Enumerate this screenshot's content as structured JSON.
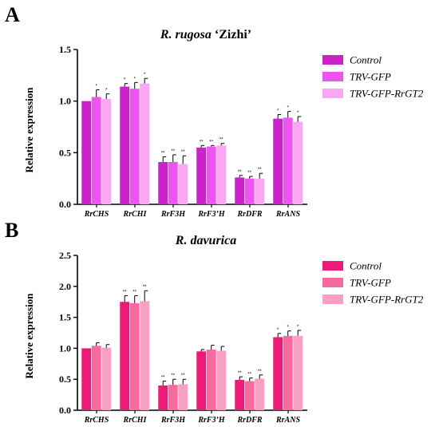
{
  "chart_data": [
    {
      "panel": "A",
      "type": "bar",
      "title_italic": "R. rugosa",
      "title_rest": " ‘Zizhi’",
      "xlabel": "",
      "ylabel": "Relative expression",
      "ylim": [
        0,
        1.5
      ],
      "yticks": [
        "0.0",
        "0.5",
        "1.0",
        "1.5"
      ],
      "categories": [
        "RrCHS",
        "RrCHI",
        "RrF3H",
        "RrF3’H",
        "RrDFR",
        "RrANS"
      ],
      "series": [
        {
          "name": "Control",
          "color": "#cc22cc",
          "values": [
            1.0,
            1.14,
            0.41,
            0.55,
            0.26,
            0.83
          ],
          "errors": [
            0.0,
            0.03,
            0.05,
            0.02,
            0.02,
            0.04
          ]
        },
        {
          "name": "TRV-GFP",
          "color": "#ee55ee",
          "values": [
            1.04,
            1.12,
            0.41,
            0.56,
            0.25,
            0.84
          ],
          "errors": [
            0.07,
            0.06,
            0.07,
            0.01,
            0.02,
            0.06
          ]
        },
        {
          "name": "TRV-GFP-RrGT2",
          "color": "#f8a8f0",
          "values": [
            1.02,
            1.17,
            0.39,
            0.57,
            0.25,
            0.8
          ],
          "errors": [
            0.05,
            0.05,
            0.08,
            0.02,
            0.05,
            0.05
          ]
        }
      ],
      "significance": [
        [
          "",
          "*",
          "*"
        ],
        [
          "*",
          "*",
          "*"
        ],
        [
          "**",
          "**",
          "**"
        ],
        [
          "**",
          "**",
          "**"
        ],
        [
          "**",
          "**",
          "**"
        ],
        [
          "*",
          "*",
          "*"
        ]
      ],
      "legend": "right"
    },
    {
      "panel": "B",
      "type": "bar",
      "title_italic": "R. davurica",
      "title_rest": "",
      "xlabel": "",
      "ylabel": "Relative expression",
      "ylim": [
        0,
        2.5
      ],
      "yticks": [
        "0.0",
        "0.5",
        "1.0",
        "1.5",
        "2.0",
        "2.5"
      ],
      "categories": [
        "RrCHS",
        "RrCHI",
        "RrF3H",
        "RrF3’H",
        "RrDFR",
        "RrANS"
      ],
      "series": [
        {
          "name": "Control",
          "color": "#ee1a78",
          "values": [
            1.0,
            1.75,
            0.4,
            0.95,
            0.49,
            1.18
          ],
          "errors": [
            0.0,
            0.1,
            0.07,
            0.03,
            0.05,
            0.06
          ]
        },
        {
          "name": "TRV-GFP",
          "color": "#f66aa0",
          "values": [
            1.04,
            1.73,
            0.41,
            0.98,
            0.47,
            1.2
          ],
          "errors": [
            0.05,
            0.12,
            0.09,
            0.07,
            0.05,
            0.08
          ]
        },
        {
          "name": "TRV-GFP-RrGT2",
          "color": "#f8a0c4",
          "values": [
            1.01,
            1.76,
            0.42,
            0.96,
            0.51,
            1.2
          ],
          "errors": [
            0.05,
            0.17,
            0.08,
            0.07,
            0.06,
            0.09
          ]
        }
      ],
      "significance": [
        [
          "",
          "",
          ""
        ],
        [
          "**",
          "**",
          "**"
        ],
        [
          "**",
          "**",
          "**"
        ],
        [
          "",
          "",
          ""
        ],
        [
          "**",
          "**",
          "**"
        ],
        [
          "*",
          "*",
          "*"
        ]
      ],
      "legend": "right"
    }
  ]
}
